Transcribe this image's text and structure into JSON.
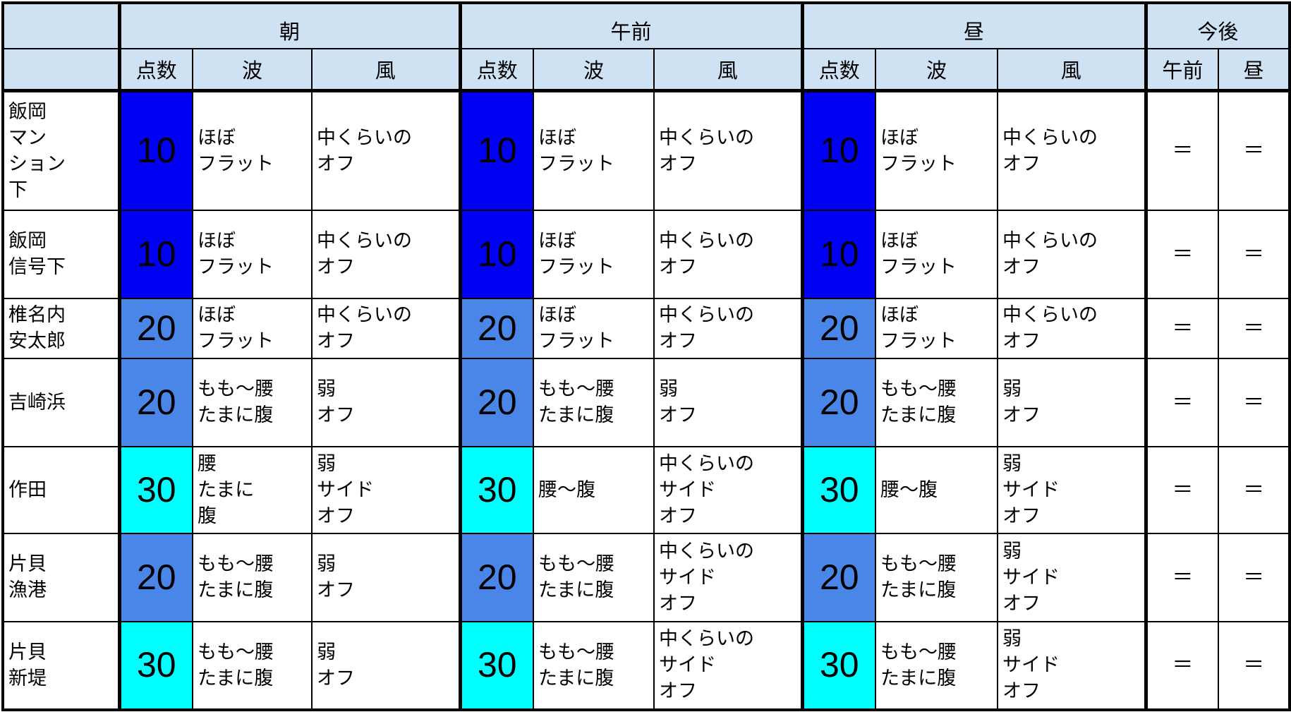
{
  "header": {
    "periods": [
      "朝",
      "午前",
      "昼"
    ],
    "future": "今後",
    "subcols": [
      "点数",
      "波",
      "風"
    ],
    "future_subcols": [
      "午前",
      "昼"
    ]
  },
  "colors": {
    "10": "#0000f2",
    "20": "#4a86e8",
    "30": "#00ffff",
    "header": "#cfe2f3"
  },
  "rows": [
    {
      "name": "飯岡\nマン\nション\n下",
      "periods": [
        {
          "score": "10",
          "wave": "ほぼ\nフラット",
          "wind": "中くらいの\nオフ"
        },
        {
          "score": "10",
          "wave": "ほぼ\nフラット",
          "wind": "中くらいの\nオフ"
        },
        {
          "score": "10",
          "wave": "ほぼ\nフラット",
          "wind": "中くらいの\nオフ"
        }
      ],
      "future": [
        "＝",
        "＝"
      ]
    },
    {
      "name": "飯岡\n信号下",
      "periods": [
        {
          "score": "10",
          "wave": "ほぼ\nフラット",
          "wind": "中くらいの\nオフ"
        },
        {
          "score": "10",
          "wave": "ほぼ\nフラット",
          "wind": "中くらいの\nオフ"
        },
        {
          "score": "10",
          "wave": "ほぼ\nフラット",
          "wind": "中くらいの\nオフ"
        }
      ],
      "future": [
        "＝",
        "＝"
      ]
    },
    {
      "name": "椎名内\n安太郎",
      "periods": [
        {
          "score": "20",
          "wave": "ほぼ\nフラット",
          "wind": "中くらいの\nオフ"
        },
        {
          "score": "20",
          "wave": "ほぼ\nフラット",
          "wind": "中くらいの\nオフ"
        },
        {
          "score": "20",
          "wave": "ほぼ\nフラット",
          "wind": "中くらいの\nオフ"
        }
      ],
      "future": [
        "＝",
        "＝"
      ]
    },
    {
      "name": "吉崎浜",
      "periods": [
        {
          "score": "20",
          "wave": "もも〜腰\nたまに腹",
          "wind": "弱\nオフ"
        },
        {
          "score": "20",
          "wave": "もも〜腰\nたまに腹",
          "wind": "弱\nオフ"
        },
        {
          "score": "20",
          "wave": "もも〜腰\nたまに腹",
          "wind": "弱\nオフ"
        }
      ],
      "future": [
        "＝",
        "＝"
      ]
    },
    {
      "name": "作田",
      "periods": [
        {
          "score": "30",
          "wave": "腰\nたまに\n腹",
          "wind": "弱\nサイド\nオフ"
        },
        {
          "score": "30",
          "wave": "腰〜腹",
          "wind": "中くらいの\nサイド\nオフ"
        },
        {
          "score": "30",
          "wave": "腰〜腹",
          "wind": "弱\nサイド\nオフ"
        }
      ],
      "future": [
        "＝",
        "＝"
      ]
    },
    {
      "name": "片貝\n漁港",
      "periods": [
        {
          "score": "20",
          "wave": "もも〜腰\nたまに腹",
          "wind": "弱\nオフ"
        },
        {
          "score": "20",
          "wave": "もも〜腰\nたまに腹",
          "wind": "中くらいの\nサイド\nオフ"
        },
        {
          "score": "20",
          "wave": "もも〜腰\nたまに腹",
          "wind": "弱\nサイド\nオフ"
        }
      ],
      "future": [
        "＝",
        "＝"
      ]
    },
    {
      "name": "片貝\n新堤",
      "periods": [
        {
          "score": "30",
          "wave": "もも〜腰\nたまに腹",
          "wind": "弱\nオフ"
        },
        {
          "score": "30",
          "wave": "もも〜腰\nたまに腹",
          "wind": "中くらいの\nサイド\nオフ"
        },
        {
          "score": "30",
          "wave": "もも〜腰\nたまに腹",
          "wind": "弱\nサイド\nオフ"
        }
      ],
      "future": [
        "＝",
        "＝"
      ]
    }
  ]
}
